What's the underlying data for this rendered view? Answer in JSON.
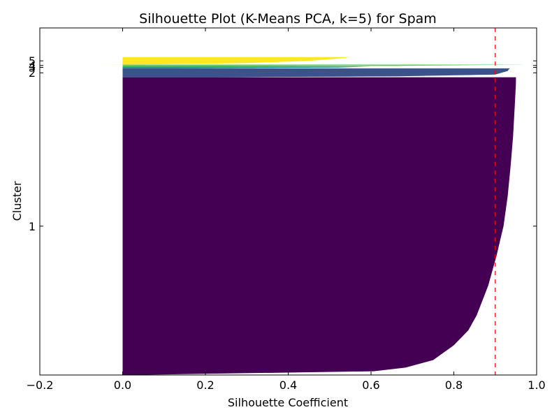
{
  "chart_data": {
    "type": "silhouette",
    "title": "Silhouette Plot (K-Means PCA, k=5) for Spam",
    "xlabel": "Silhouette Coefficient",
    "ylabel": "Cluster",
    "xlim": [
      -0.2,
      1.0
    ],
    "ylim": [
      0,
      4650
    ],
    "xticks": [
      -0.2,
      0.0,
      0.2,
      0.4,
      0.6,
      0.8,
      1.0
    ],
    "xtick_labels": [
      "−0.2",
      "0.0",
      "0.2",
      "0.4",
      "0.6",
      "0.8",
      "1.0"
    ],
    "average_silhouette": 0.9,
    "average_line_color": "#ff0000",
    "clusters": [
      {
        "label": "1",
        "size": 3989,
        "color": "#440154",
        "profile": [
          [
            0.0,
            0.0
          ],
          [
            0.007,
            0.56
          ],
          [
            0.02,
            0.67
          ],
          [
            0.05,
            0.75
          ],
          [
            0.1,
            0.8
          ],
          [
            0.15,
            0.835
          ],
          [
            0.2,
            0.855
          ],
          [
            0.3,
            0.883
          ],
          [
            0.4,
            0.903
          ],
          [
            0.5,
            0.92
          ],
          [
            0.6,
            0.93
          ],
          [
            0.7,
            0.937
          ],
          [
            0.8,
            0.943
          ],
          [
            0.9,
            0.947
          ],
          [
            0.98,
            0.95
          ],
          [
            1.0,
            0.95
          ]
        ]
      },
      {
        "label": "2",
        "size": 120,
        "color": "#3b528b",
        "profile": [
          [
            0.0,
            0.16
          ],
          [
            0.1,
            0.66
          ],
          [
            0.3,
            0.9
          ],
          [
            0.7,
            0.93
          ],
          [
            1.0,
            0.935
          ]
        ]
      },
      {
        "label": "3",
        "size": 25,
        "color": "#21918c",
        "profile": [
          [
            0.0,
            0.13
          ],
          [
            0.4,
            0.52
          ],
          [
            1.0,
            0.6
          ]
        ]
      },
      {
        "label": "4",
        "size": 25,
        "color": "#5ec962",
        "profile": [
          [
            0.0,
            0.12
          ],
          [
            0.3,
            0.66
          ],
          [
            1.0,
            0.98
          ]
        ]
      },
      {
        "label": "5",
        "size": 100,
        "color": "#fde725",
        "profile": [
          [
            0.0,
            -0.06
          ],
          [
            0.05,
            0.1
          ],
          [
            0.2,
            0.3
          ],
          [
            0.5,
            0.45
          ],
          [
            0.85,
            0.53
          ],
          [
            1.0,
            0.55
          ]
        ]
      }
    ]
  }
}
